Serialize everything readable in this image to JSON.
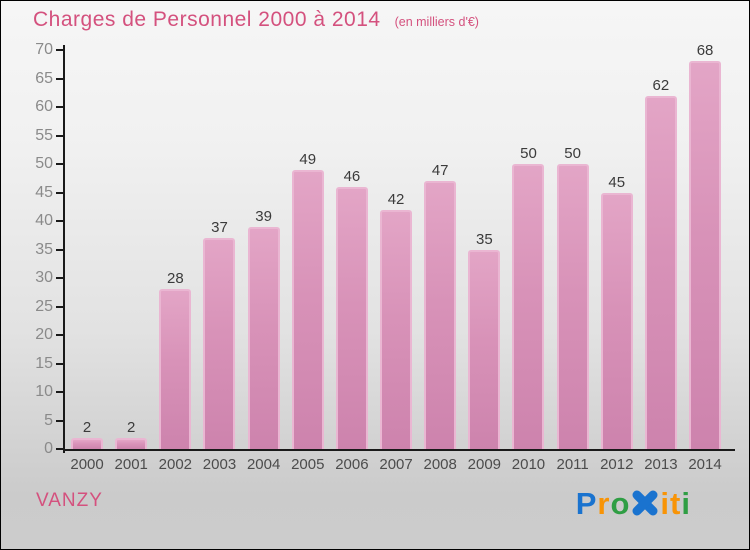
{
  "header": {
    "title": "Charges de Personnel 2000 à 2014",
    "subtitle": "(en milliers d'€)"
  },
  "chart_data": {
    "type": "bar",
    "title": "Charges de Personnel 2000 à 2014",
    "unit_note": "(en milliers d'€)",
    "categories": [
      "2000",
      "2001",
      "2002",
      "2003",
      "2004",
      "2005",
      "2006",
      "2007",
      "2008",
      "2009",
      "2010",
      "2011",
      "2012",
      "2013",
      "2014"
    ],
    "values": [
      2,
      2,
      28,
      37,
      39,
      49,
      46,
      42,
      47,
      35,
      50,
      50,
      45,
      62,
      68
    ],
    "ylim": [
      0,
      70
    ],
    "ytick_step": 5,
    "grid": false,
    "legend": false,
    "bar_color": "#d892b8",
    "bar_border_color": "#eab6d2",
    "value_label_color": "#3b3b3b",
    "axis_color": "#1a1a1a",
    "ytick_label_color": "#8a8a8a",
    "xtick_label_color": "#4c4c4c"
  },
  "footer": {
    "location_label": "VANZY",
    "logo": {
      "text": "Proxiti",
      "letters": [
        {
          "char": "P",
          "color": "#1a73cf"
        },
        {
          "char": "r",
          "color": "#f89406"
        },
        {
          "char": "o",
          "color": "#2f9e44"
        },
        {
          "char": "X",
          "color": "#1a73cf",
          "icon": "x-icon"
        },
        {
          "char": "i",
          "color": "#f89406"
        },
        {
          "char": "t",
          "color": "#f89406"
        },
        {
          "char": "i",
          "color": "#2f9e44"
        }
      ]
    }
  },
  "colors": {
    "title_pink": "#d4517e",
    "background_top": "#f6f6f6",
    "background_bottom": "#cccccc"
  }
}
